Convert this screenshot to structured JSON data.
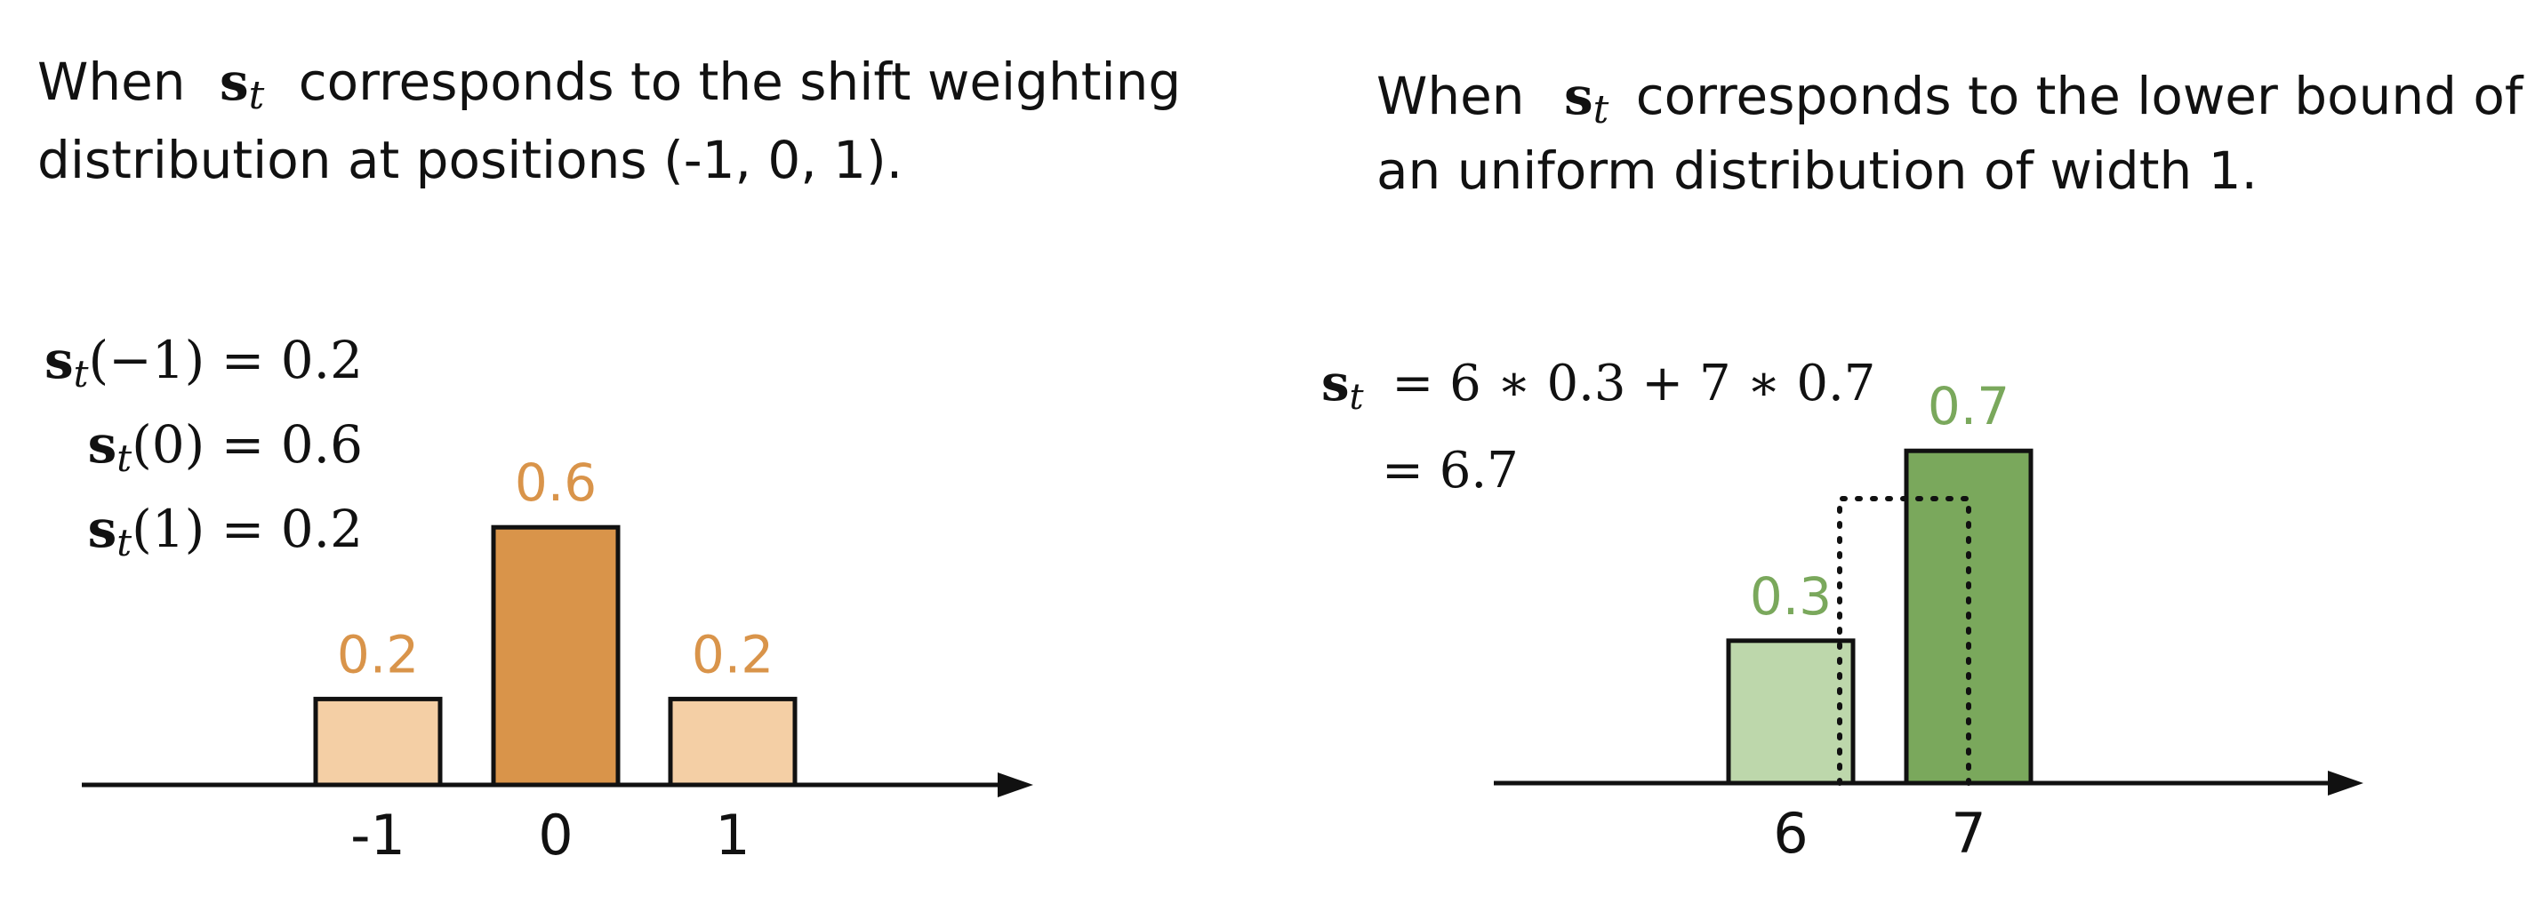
{
  "colors": {
    "orange_dark": "#d9944a",
    "orange_light": "#f4cfa5",
    "green_dark": "#7aa85c",
    "green_light": "#bdd7ab",
    "label_orange": "#d9944a",
    "label_green": "#7aa85c",
    "stroke": "#111111"
  },
  "left": {
    "desc_line1_before": "When",
    "desc_symbol": "s",
    "desc_symbol_sub": "t",
    "desc_line1_after": "corresponds to the shift weighting",
    "desc_line2": "distribution at positions (-1, 0, 1).",
    "equations": [
      {
        "sym": "s",
        "sub": "t",
        "rest": "(−1) = 0.2"
      },
      {
        "sym": "s",
        "sub": "t",
        "rest": "(0) = 0.6"
      },
      {
        "sym": "s",
        "sub": "t",
        "rest": "(1) = 0.2"
      }
    ]
  },
  "right": {
    "desc_line1_before": "When",
    "desc_symbol": "s",
    "desc_symbol_sub": "t",
    "desc_line1_after": "corresponds to the lower bound of",
    "desc_line2": "an uniform distribution of width 1.",
    "eq1_sym": "s",
    "eq1_sub": "t",
    "eq1_rest": "= 6 ∗ 0.3 + 7 ∗ 0.7",
    "eq2": "= 6.7"
  },
  "chart_data": [
    {
      "type": "bar",
      "categories": [
        "-1",
        "0",
        "1"
      ],
      "values": [
        0.2,
        0.6,
        0.2
      ],
      "data_labels": [
        "0.2",
        "0.6",
        "0.2"
      ],
      "highlight": "0"
    },
    {
      "type": "bar",
      "categories": [
        "6",
        "7"
      ],
      "values": [
        0.3,
        0.7
      ],
      "data_labels": [
        "0.3",
        "0.7"
      ],
      "highlight": "7"
    }
  ]
}
